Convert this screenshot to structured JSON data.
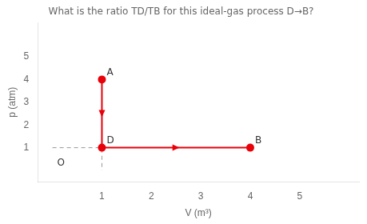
{
  "chart_data": {
    "type": "line",
    "title": "What is the ratio TD/TB for this ideal-gas process D→B?",
    "x_label": "V (m³)",
    "y_label": "p (atm)",
    "xlim": [
      -0.3,
      6.2
    ],
    "ylim": [
      -0.5,
      6.5
    ],
    "xticks": [
      1,
      2,
      3,
      4,
      5
    ],
    "yticks": [
      1,
      2,
      3,
      4,
      5
    ],
    "grid": false,
    "series": [
      {
        "color": "#E8000A",
        "x": [
          1,
          1,
          4
        ],
        "values": [
          4,
          1,
          1
        ],
        "marker": "o",
        "line_style": "solid"
      },
      {
        "color": "#999999",
        "x": [
          0,
          1,
          1
        ],
        "values": [
          1,
          1,
          0
        ],
        "marker": "none",
        "line_style": "dashed"
      }
    ],
    "annotations": [
      {
        "text": "A",
        "x": 1,
        "y": 4
      },
      {
        "text": "D",
        "x": 1,
        "y": 1
      },
      {
        "text": "B",
        "x": 4,
        "y": 1
      },
      {
        "text": "O",
        "x": 0,
        "y": 0
      }
    ]
  }
}
